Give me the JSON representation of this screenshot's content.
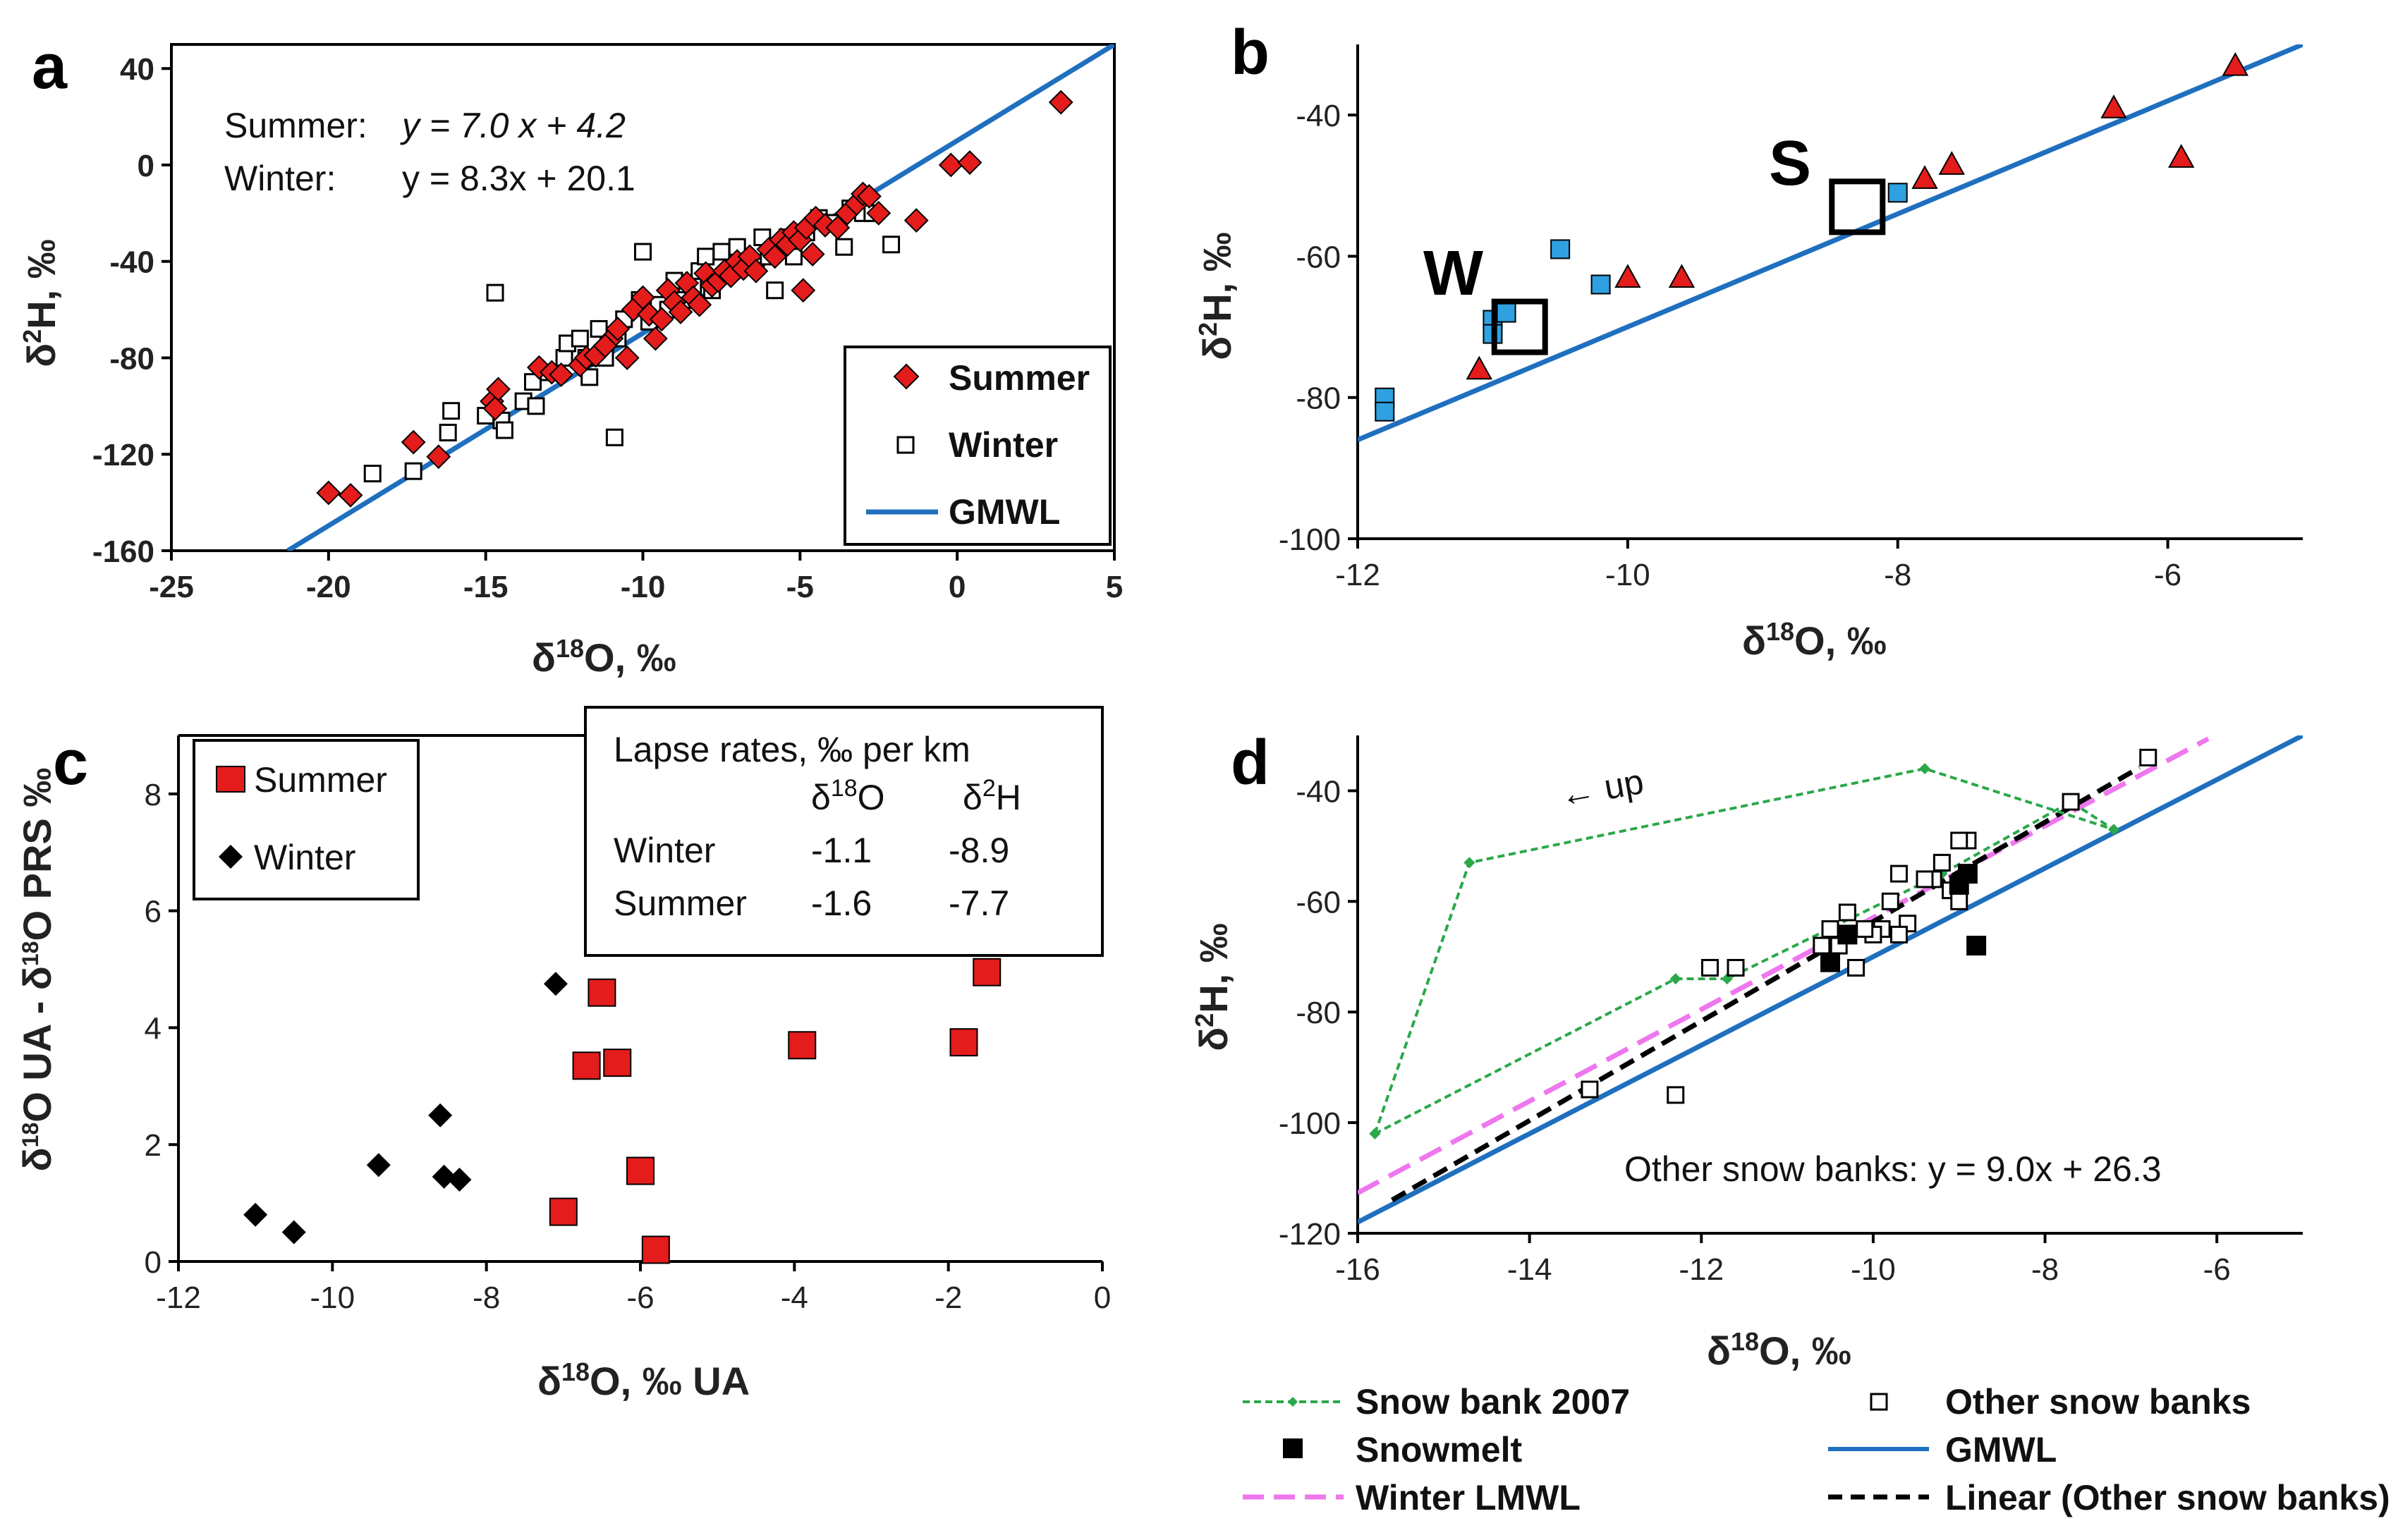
{
  "chart_data": [
    {
      "id": "a",
      "type": "scatter",
      "panel_label": "a",
      "xlabel": "δ18O, ‰",
      "ylabel": "δ2H, ‰",
      "xlim": [
        -25,
        5
      ],
      "ylim": [
        -160,
        50
      ],
      "xticks": [
        -25,
        -20,
        -15,
        -10,
        -5,
        0,
        5
      ],
      "yticks": [
        40,
        0,
        -40,
        -80,
        -120,
        -160
      ],
      "equations": [
        {
          "label": "Summer:",
          "eq": "y = 7.0 x + 4.2"
        },
        {
          "label": "Winter:",
          "eq": "y = 8.3x + 20.1"
        }
      ],
      "legend": [
        "Summer",
        "Winter",
        "GMWL"
      ],
      "series": [
        {
          "name": "Summer",
          "points": [
            [
              -20,
              -136
            ],
            [
              -19.3,
              -137
            ],
            [
              -17.3,
              -115
            ],
            [
              -16.5,
              -121
            ],
            [
              -14.8,
              -98
            ],
            [
              -14.6,
              -93
            ],
            [
              -14.7,
              -101
            ],
            [
              -13.3,
              -84
            ],
            [
              -12.9,
              -86
            ],
            [
              -12.6,
              -87
            ],
            [
              -12.0,
              -83
            ],
            [
              -11.8,
              -80
            ],
            [
              -11.5,
              -79
            ],
            [
              -11.0,
              -72
            ],
            [
              -11.2,
              -75
            ],
            [
              -10.8,
              -68
            ],
            [
              -10.5,
              -80
            ],
            [
              -10.3,
              -60
            ],
            [
              -10.0,
              -55
            ],
            [
              -9.8,
              -62
            ],
            [
              -9.6,
              -72
            ],
            [
              -9.4,
              -64
            ],
            [
              -9.2,
              -52
            ],
            [
              -9.0,
              -57
            ],
            [
              -8.8,
              -61
            ],
            [
              -8.6,
              -49
            ],
            [
              -8.4,
              -55
            ],
            [
              -8.2,
              -58
            ],
            [
              -8.0,
              -45
            ],
            [
              -7.8,
              -50
            ],
            [
              -7.6,
              -48
            ],
            [
              -7.4,
              -44
            ],
            [
              -7.2,
              -46
            ],
            [
              -7.0,
              -40
            ],
            [
              -6.8,
              -43
            ],
            [
              -6.6,
              -38
            ],
            [
              -6.4,
              -44
            ],
            [
              -6.0,
              -35
            ],
            [
              -5.8,
              -38
            ],
            [
              -5.6,
              -31
            ],
            [
              -5.4,
              -33
            ],
            [
              -5.2,
              -28
            ],
            [
              -5.0,
              -31
            ],
            [
              -4.8,
              -26
            ],
            [
              -4.6,
              -37
            ],
            [
              -4.9,
              -52
            ],
            [
              -4.5,
              -22
            ],
            [
              -4.2,
              -25
            ],
            [
              -3.8,
              -26
            ],
            [
              -3.5,
              -20
            ],
            [
              -3.2,
              -16
            ],
            [
              -3.0,
              -12
            ],
            [
              -2.8,
              -13
            ],
            [
              -2.5,
              -20
            ],
            [
              -1.3,
              -23
            ],
            [
              -0.2,
              0
            ],
            [
              0.4,
              1
            ],
            [
              3.3,
              26
            ]
          ]
        },
        {
          "name": "Winter",
          "points": [
            [
              -18.6,
              -128
            ],
            [
              -17.3,
              -127
            ],
            [
              -16.1,
              -102
            ],
            [
              -16.2,
              -111
            ],
            [
              -15.0,
              -104
            ],
            [
              -14.7,
              -53
            ],
            [
              -14.5,
              -106
            ],
            [
              -14.4,
              -110
            ],
            [
              -13.8,
              -98
            ],
            [
              -13.5,
              -90
            ],
            [
              -13.4,
              -100
            ],
            [
              -13.0,
              -86
            ],
            [
              -12.5,
              -80
            ],
            [
              -12.4,
              -74
            ],
            [
              -12.0,
              -72
            ],
            [
              -11.8,
              -80
            ],
            [
              -11.7,
              -88
            ],
            [
              -11.4,
              -68
            ],
            [
              -11.2,
              -80
            ],
            [
              -10.9,
              -113
            ],
            [
              -10.8,
              -72
            ],
            [
              -10.6,
              -64
            ],
            [
              -10.0,
              -36
            ],
            [
              -10.1,
              -56
            ],
            [
              -9.8,
              -65
            ],
            [
              -9.5,
              -58
            ],
            [
              -9.2,
              -60
            ],
            [
              -9.0,
              -48
            ],
            [
              -8.7,
              -56
            ],
            [
              -8.4,
              -50
            ],
            [
              -8.2,
              -44
            ],
            [
              -8.0,
              -38
            ],
            [
              -7.8,
              -52
            ],
            [
              -7.5,
              -36
            ],
            [
              -7.2,
              -44
            ],
            [
              -7.0,
              -34
            ],
            [
              -6.8,
              -40
            ],
            [
              -6.4,
              -42
            ],
            [
              -6.2,
              -30
            ],
            [
              -6.0,
              -38
            ],
            [
              -5.8,
              -52
            ],
            [
              -5.4,
              -30
            ],
            [
              -5.2,
              -38
            ],
            [
              -4.8,
              -28
            ],
            [
              -4.4,
              -22
            ],
            [
              -4.0,
              -24
            ],
            [
              -3.6,
              -34
            ],
            [
              -3.4,
              -18
            ],
            [
              -3.0,
              -20
            ],
            [
              -2.7,
              -20
            ],
            [
              -2.1,
              -33
            ]
          ]
        },
        {
          "name": "GMWL",
          "line": [
            [
              -21.3,
              -160
            ],
            [
              5,
              50
            ]
          ]
        }
      ]
    },
    {
      "id": "b",
      "type": "scatter",
      "panel_label": "b",
      "xlabel": "δ18O, ‰",
      "ylabel": "δ2H, ‰",
      "xlim": [
        -12,
        -5
      ],
      "ylim": [
        -100,
        -30
      ],
      "xticks": [
        -12,
        -10,
        -8,
        -6
      ],
      "yticks": [
        -40,
        -60,
        -80,
        -100
      ],
      "annotations": [
        "W",
        "S"
      ],
      "series": [
        {
          "name": "triangles",
          "points": [
            [
              -5.5,
              -33
            ],
            [
              -6.4,
              -39
            ],
            [
              -5.9,
              -46
            ],
            [
              -7.6,
              -47
            ],
            [
              -7.8,
              -49
            ],
            [
              -9.6,
              -63
            ],
            [
              -10.0,
              -63
            ],
            [
              -11.1,
              -76
            ]
          ]
        },
        {
          "name": "squares",
          "points": [
            [
              -11.8,
              -80
            ],
            [
              -11.8,
              -82
            ],
            [
              -11.0,
              -69
            ],
            [
              -11.0,
              -71
            ],
            [
              -10.9,
              -68
            ],
            [
              -10.5,
              -59
            ],
            [
              -10.2,
              -64
            ],
            [
              -8.0,
              -51
            ]
          ]
        },
        {
          "name": "means",
          "points": [
            [
              -10.8,
              -70
            ],
            [
              -8.3,
              -53
            ]
          ]
        },
        {
          "name": "GMWL",
          "line": [
            [
              -12,
              -86
            ],
            [
              -5,
              -30
            ]
          ]
        }
      ]
    },
    {
      "id": "c",
      "type": "scatter",
      "panel_label": "c",
      "xlabel": "δ18O, ‰ UA",
      "ylabel": "δ18O UA - δ18O PRS ‰",
      "xlim": [
        -12,
        0
      ],
      "ylim": [
        0,
        9
      ],
      "xticks": [
        -12,
        -10,
        -8,
        -6,
        -4,
        -2,
        0
      ],
      "yticks": [
        0,
        2,
        4,
        6,
        8
      ],
      "legend": [
        "Summer",
        "Winter"
      ],
      "lapse_table": {
        "title": "Lapse rates, ‰ per km",
        "col1": "δ18O",
        "col2": "δ2H",
        "rows": [
          {
            "name": "Winter",
            "o18": "-1.1",
            "h2": "-8.9"
          },
          {
            "name": "Summer",
            "o18": "-1.6",
            "h2": "-7.7"
          }
        ]
      },
      "series": [
        {
          "name": "Summer",
          "points": [
            [
              -1.5,
              4.95
            ],
            [
              -6.5,
              4.6
            ],
            [
              -6.7,
              3.35
            ],
            [
              -6.3,
              3.4
            ],
            [
              -3.9,
              3.7
            ],
            [
              -1.8,
              3.75
            ],
            [
              -6.0,
              1.55
            ],
            [
              -7.0,
              0.85
            ],
            [
              -5.8,
              0.2
            ]
          ]
        },
        {
          "name": "Winter",
          "points": [
            [
              -7.1,
              4.75
            ],
            [
              -8.6,
              2.5
            ],
            [
              -9.4,
              1.65
            ],
            [
              -8.55,
              1.45
            ],
            [
              -8.35,
              1.4
            ],
            [
              -11.0,
              0.8
            ],
            [
              -10.5,
              0.5
            ]
          ]
        }
      ]
    },
    {
      "id": "d",
      "type": "scatter",
      "panel_label": "d",
      "xlabel": "δ18O, ‰",
      "ylabel": "δ2H, ‰",
      "xlim": [
        -16,
        -5
      ],
      "ylim": [
        -120,
        -30
      ],
      "xticks": [
        -16,
        -14,
        -12,
        -10,
        -8,
        -6
      ],
      "yticks": [
        -40,
        -60,
        -80,
        -100,
        -120
      ],
      "equation": "Other snow banks:  y = 9.0x + 26.3",
      "arrow_label": "← up",
      "legend": [
        "Snow bank 2007",
        "Other snow banks",
        "Snowmelt",
        "GMWL",
        "Winter LMWL",
        "Linear (Other snow banks)"
      ],
      "series": [
        {
          "name": "Snow bank 2007",
          "points": [
            [
              -15.8,
              -102
            ],
            [
              -14.7,
              -53
            ],
            [
              -9.4,
              -36
            ],
            [
              -7.2,
              -47
            ],
            [
              -7.7,
              -42
            ],
            [
              -9.2,
              -55
            ],
            [
              -11.7,
              -74
            ],
            [
              -12.3,
              -74
            ],
            [
              -15.8,
              -102
            ]
          ]
        },
        {
          "name": "Other snow banks",
          "points": [
            [
              -6.8,
              -34
            ],
            [
              -7.7,
              -42
            ],
            [
              -8.9,
              -49
            ],
            [
              -9.0,
              -49
            ],
            [
              -9.2,
              -53
            ],
            [
              -9.3,
              -56
            ],
            [
              -9.4,
              -56
            ],
            [
              -9.1,
              -58
            ],
            [
              -9.0,
              -60
            ],
            [
              -9.7,
              -55
            ],
            [
              -9.8,
              -60
            ],
            [
              -9.6,
              -64
            ],
            [
              -9.7,
              -66
            ],
            [
              -9.9,
              -65
            ],
            [
              -10.0,
              -66
            ],
            [
              -10.1,
              -65
            ],
            [
              -10.3,
              -62
            ],
            [
              -10.5,
              -65
            ],
            [
              -10.6,
              -68
            ],
            [
              -10.4,
              -68
            ],
            [
              -10.2,
              -72
            ],
            [
              -11.6,
              -72
            ],
            [
              -11.9,
              -72
            ],
            [
              -12.3,
              -95
            ],
            [
              -13.3,
              -94
            ]
          ]
        },
        {
          "name": "Snowmelt",
          "points": [
            [
              -8.8,
              -68
            ],
            [
              -8.9,
              -55
            ],
            [
              -9.0,
              -57
            ],
            [
              -10.3,
              -66
            ],
            [
              -10.5,
              -71
            ]
          ]
        },
        {
          "name": "GMWL",
          "line": [
            [
              -16,
              -118
            ],
            [
              -5,
              -30
            ]
          ]
        },
        {
          "name": "Winter LMWL",
          "line": [
            [
              -16,
              -112.7
            ],
            [
              -6.1,
              -30.6
            ]
          ]
        },
        {
          "name": "Linear (Other snow banks)",
          "line": [
            [
              -15.6,
              -114
            ],
            [
              -6.9,
              -35.8
            ]
          ]
        }
      ]
    }
  ]
}
